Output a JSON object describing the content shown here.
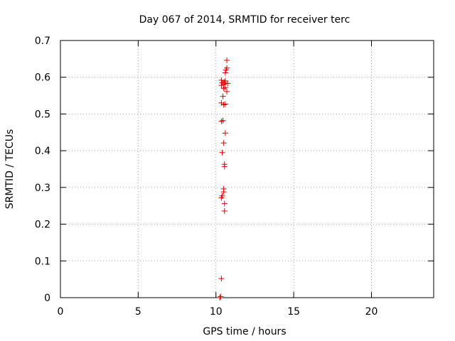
{
  "chart_data": {
    "type": "scatter",
    "title": "Day 067 of 2014, SRMTID for receiver terc",
    "xlabel": "GPS time / hours",
    "ylabel": "SRMTID / TECUs",
    "xlim": [
      0,
      24
    ],
    "ylim": [
      0,
      0.7
    ],
    "grid": true,
    "x_ticks": [
      0,
      5,
      10,
      15,
      20
    ],
    "x_tick_labels": [
      "0",
      "5",
      "10",
      "15",
      "20"
    ],
    "y_ticks": [
      0,
      0.1,
      0.2,
      0.3,
      0.4,
      0.5,
      0.6,
      0.7
    ],
    "y_tick_labels": [
      "0",
      "0.1",
      "0.2",
      "0.3",
      "0.4",
      "0.5",
      "0.6",
      "0.7"
    ],
    "marker": "+",
    "color": "#e00000",
    "series": [
      {
        "name": "SRMTID",
        "points": [
          {
            "x": 10.25,
            "y": 0.0
          },
          {
            "x": 10.3,
            "y": 0.003
          },
          {
            "x": 10.35,
            "y": 0.052
          },
          {
            "x": 10.55,
            "y": 0.236
          },
          {
            "x": 10.55,
            "y": 0.256
          },
          {
            "x": 10.35,
            "y": 0.272
          },
          {
            "x": 10.4,
            "y": 0.277
          },
          {
            "x": 10.5,
            "y": 0.288
          },
          {
            "x": 10.5,
            "y": 0.296
          },
          {
            "x": 10.55,
            "y": 0.357
          },
          {
            "x": 10.55,
            "y": 0.363
          },
          {
            "x": 10.4,
            "y": 0.395
          },
          {
            "x": 10.5,
            "y": 0.421
          },
          {
            "x": 10.6,
            "y": 0.448
          },
          {
            "x": 10.35,
            "y": 0.48
          },
          {
            "x": 10.45,
            "y": 0.482
          },
          {
            "x": 10.35,
            "y": 0.53
          },
          {
            "x": 10.5,
            "y": 0.525
          },
          {
            "x": 10.6,
            "y": 0.527
          },
          {
            "x": 10.45,
            "y": 0.548
          },
          {
            "x": 10.7,
            "y": 0.561
          },
          {
            "x": 10.5,
            "y": 0.57
          },
          {
            "x": 10.6,
            "y": 0.572
          },
          {
            "x": 10.35,
            "y": 0.578
          },
          {
            "x": 10.5,
            "y": 0.581
          },
          {
            "x": 10.4,
            "y": 0.585
          },
          {
            "x": 10.55,
            "y": 0.586
          },
          {
            "x": 10.75,
            "y": 0.583
          },
          {
            "x": 10.35,
            "y": 0.592
          },
          {
            "x": 10.6,
            "y": 0.59
          },
          {
            "x": 10.6,
            "y": 0.612
          },
          {
            "x": 10.65,
            "y": 0.62
          },
          {
            "x": 10.7,
            "y": 0.625
          },
          {
            "x": 10.7,
            "y": 0.646
          }
        ]
      }
    ]
  }
}
